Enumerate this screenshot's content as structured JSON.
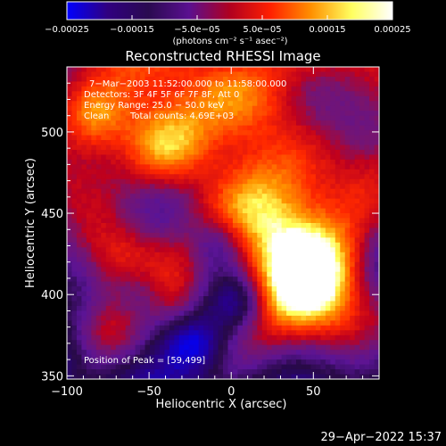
{
  "chart_data": {
    "type": "heatmap",
    "title": "Reconstructed RHESSI Image",
    "xlabel": "Heliocentric X (arcsec)",
    "ylabel": "Heliocentric Y (arcsec)",
    "xlim": [
      -100,
      90
    ],
    "ylim": [
      348,
      540
    ],
    "xticks": [
      {
        "value": -100,
        "label": "−100"
      },
      {
        "value": -50,
        "label": "−50"
      },
      {
        "value": 0,
        "label": "0"
      },
      {
        "value": 50,
        "label": "50"
      }
    ],
    "yticks": [
      {
        "value": 350,
        "label": "350"
      },
      {
        "value": 400,
        "label": "400"
      },
      {
        "value": 450,
        "label": "450"
      },
      {
        "value": 500,
        "label": "500"
      }
    ],
    "colorbar": {
      "min": -0.00025,
      "max": 0.00025,
      "unit_label": "(photons cm⁻² s⁻¹ asec⁻²)",
      "ticks": [
        {
          "value": -0.00025,
          "label": "−0.00025"
        },
        {
          "value": -0.00015,
          "label": "−0.00015"
        },
        {
          "value": -5e-05,
          "label": "−5.0e−05"
        },
        {
          "value": 5e-05,
          "label": "5.0e−05"
        },
        {
          "value": 0.00015,
          "label": "0.00015"
        },
        {
          "value": 0.00025,
          "label": "0.00025"
        }
      ],
      "colors": [
        "#0000ff",
        "#300080",
        "#2a0a50",
        "#5a1090",
        "#b00020",
        "#ff2000",
        "#ff9000",
        "#ffff60",
        "#ffffff"
      ]
    },
    "annotations": [
      "7−Mar−2003 11:52:00.000 to 11:58:00.000",
      "Detectors: 3F 4F 5F 6F 7F 8F, Att 0",
      "Energy Range: 25.0 − 50.0 keV",
      "Clean",
      "Total counts: 4.69E+03"
    ],
    "peak_label": "Position of Peak = [59,499]",
    "peak": {
      "x": 59,
      "y": 499
    },
    "grid": false,
    "legend": "none"
  },
  "footer": {
    "timestamp": "29−Apr−2022 15:37"
  }
}
